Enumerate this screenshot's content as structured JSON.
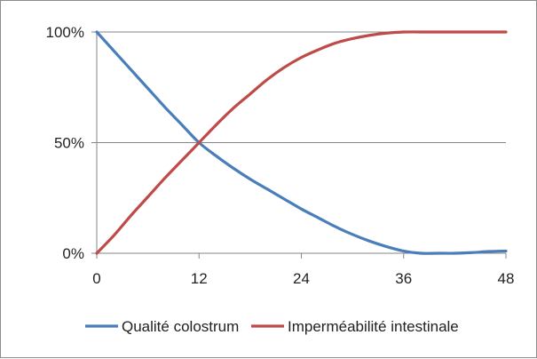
{
  "chart_data": {
    "type": "line",
    "title": "",
    "xlabel": "",
    "ylabel": "",
    "xlim": [
      0,
      48
    ],
    "ylim": [
      0,
      100
    ],
    "x_ticks": [
      "0",
      "12",
      "24",
      "36",
      "48"
    ],
    "y_ticks": [
      "0%",
      "50%",
      "100%"
    ],
    "grid": "horizontal",
    "legend_position": "bottom",
    "series": [
      {
        "name": "Qualité colostrum",
        "color": "#4a7ebb",
        "x": [
          0,
          2,
          4,
          6,
          8,
          10,
          12,
          14,
          16,
          18,
          20,
          22,
          24,
          26,
          28,
          30,
          32,
          34,
          36,
          38,
          40,
          42,
          44,
          46,
          48
        ],
        "y": [
          100,
          91.5,
          83,
          74.5,
          66,
          58,
          50,
          44,
          38.5,
          33.5,
          29,
          24.5,
          20,
          16,
          12,
          8.5,
          5.5,
          3,
          1,
          0,
          0,
          0,
          0.3,
          0.8,
          1
        ]
      },
      {
        "name": "Imperméabilité intestinale",
        "color": "#be4b48",
        "x": [
          0,
          2,
          4,
          6,
          8,
          10,
          12,
          14,
          16,
          18,
          20,
          22,
          24,
          26,
          28,
          30,
          32,
          34,
          36,
          38,
          40,
          42,
          44,
          46,
          48
        ],
        "y": [
          0,
          8,
          17,
          25.5,
          34,
          42,
          50,
          58,
          65.5,
          72,
          78.5,
          84,
          88.5,
          92,
          95,
          97,
          98.5,
          99.5,
          100,
          100,
          100,
          100,
          100,
          100,
          100
        ]
      }
    ]
  }
}
